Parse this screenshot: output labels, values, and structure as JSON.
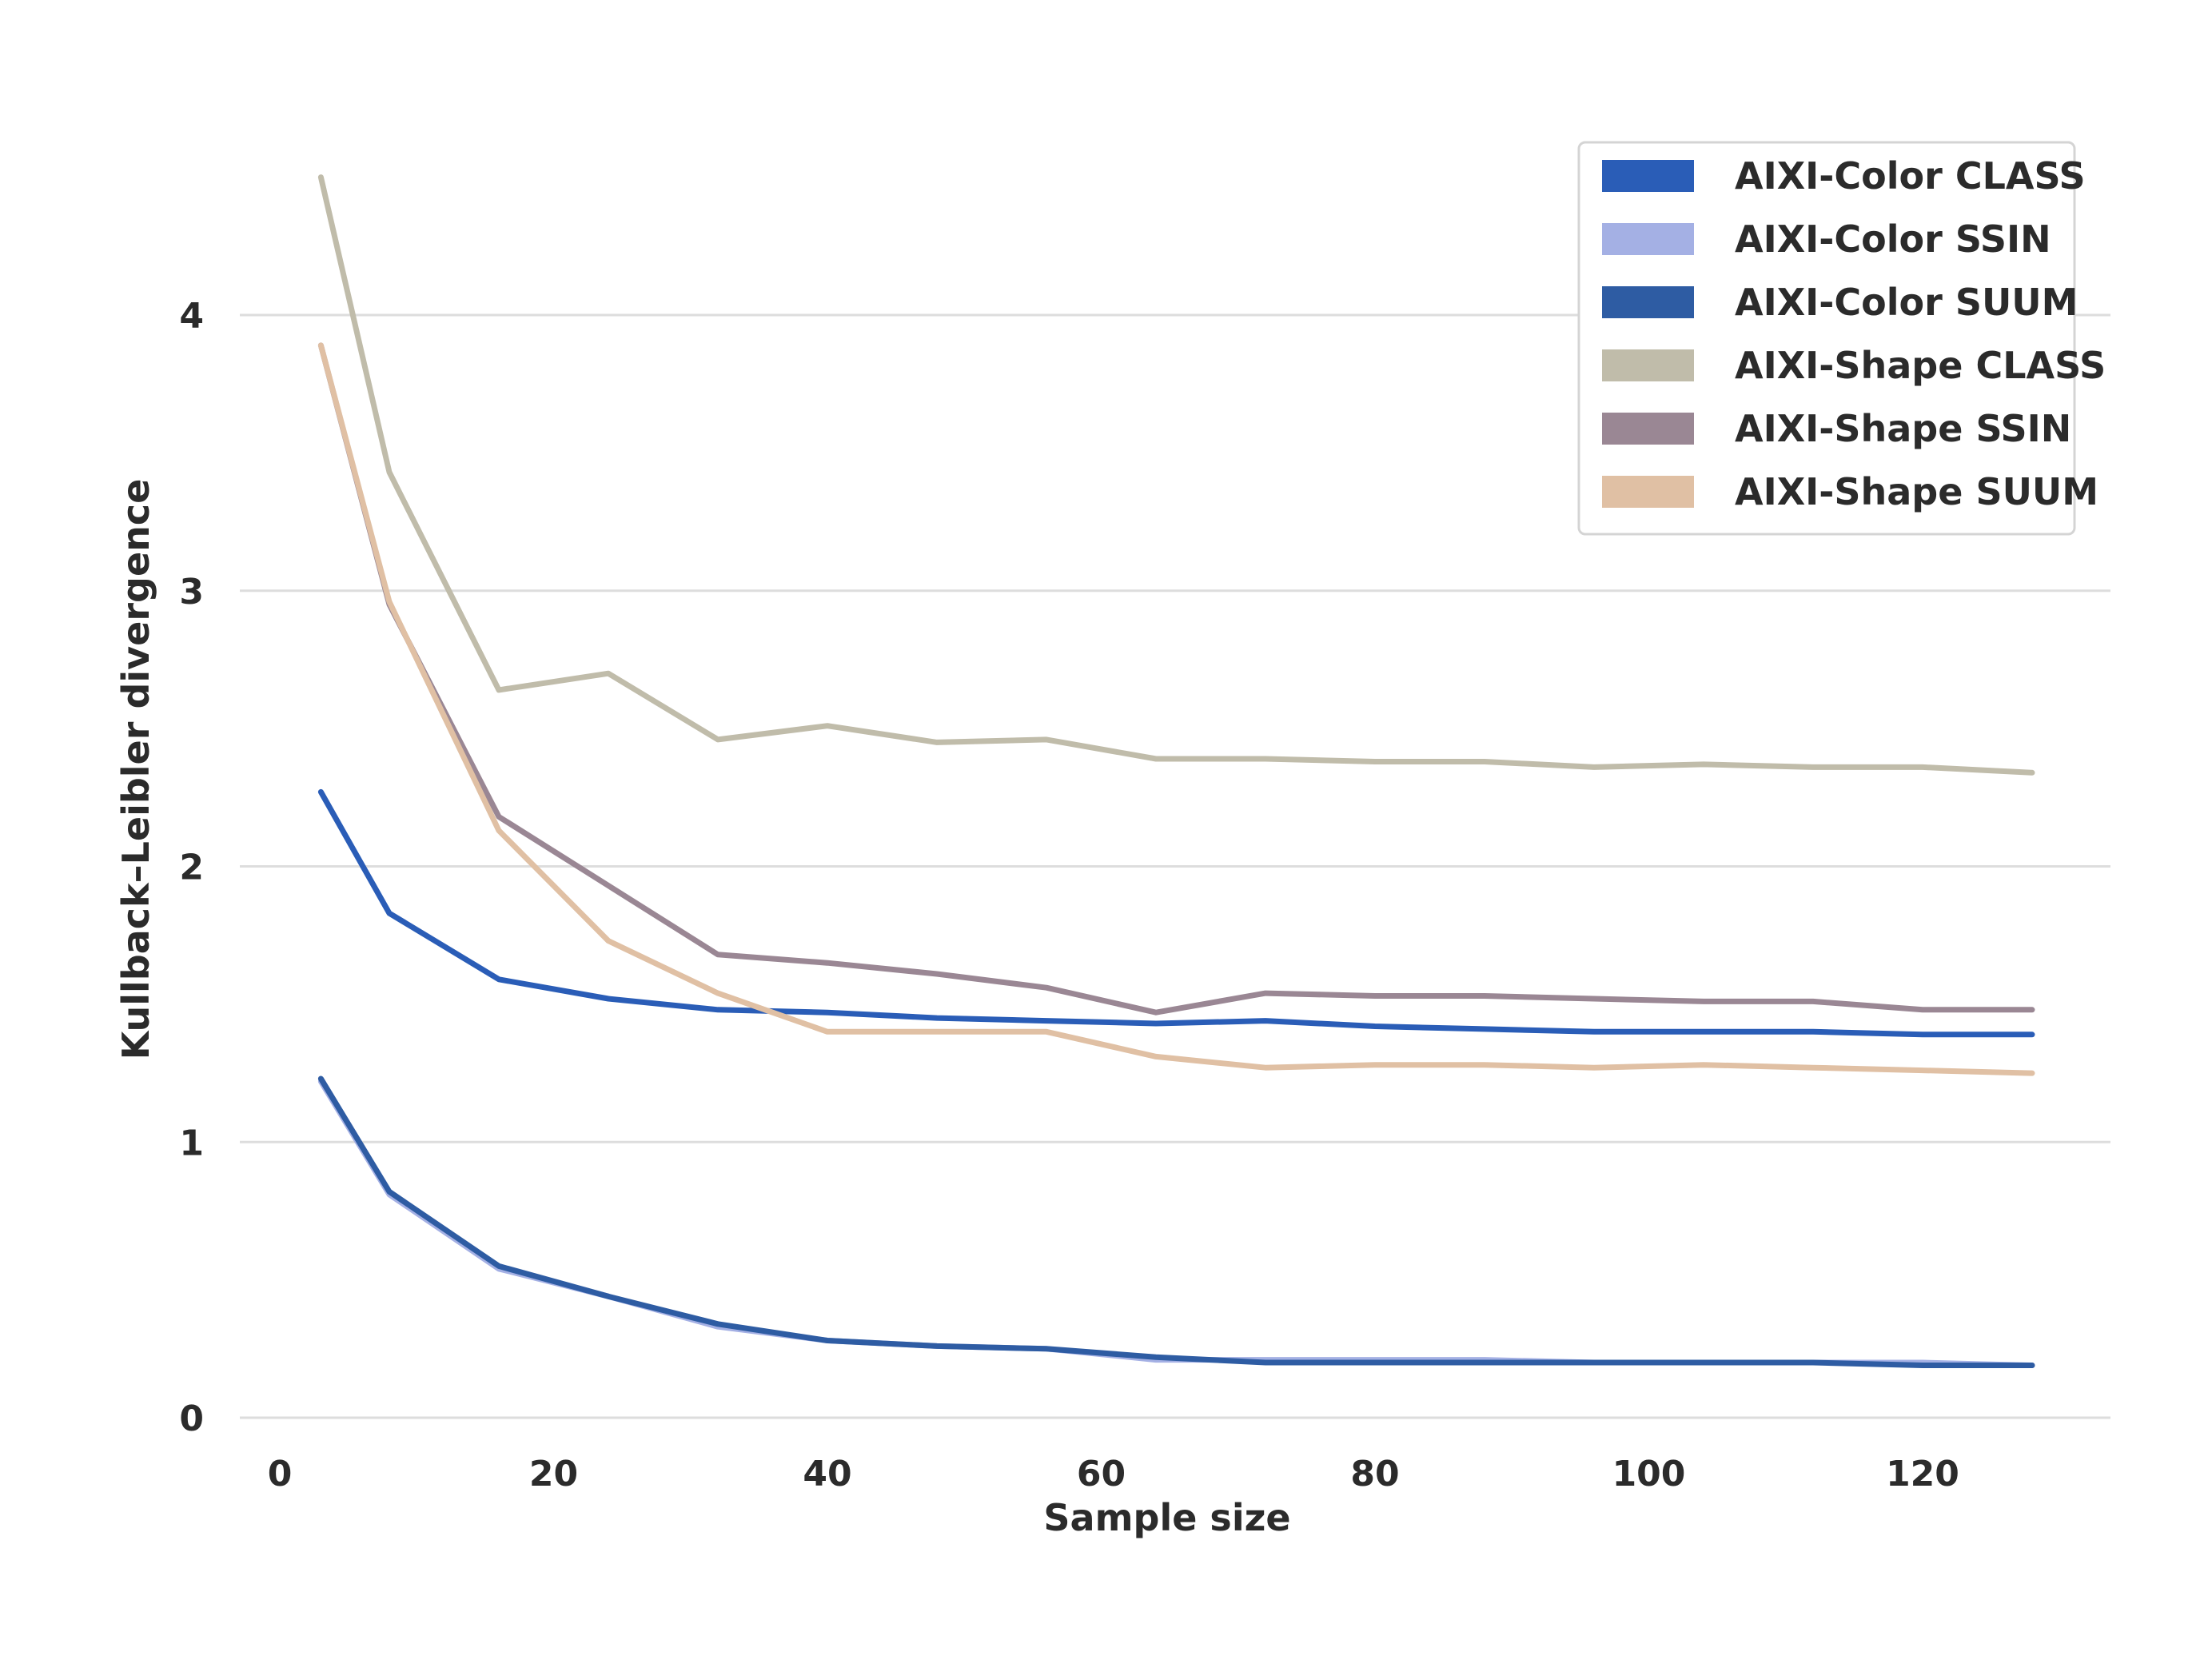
{
  "chart_data": {
    "type": "line",
    "title": "",
    "xlabel": "Sample size",
    "ylabel": "Kullback–Leibler divergence",
    "xlim": [
      -3,
      134
    ],
    "ylim": [
      0,
      4.5
    ],
    "xticks": [
      0,
      20,
      40,
      60,
      80,
      100,
      120
    ],
    "yticks": [
      0,
      1,
      2,
      3,
      4
    ],
    "grid": "horizontal",
    "legend_position": "top-right",
    "x": [
      3,
      8,
      16,
      24,
      32,
      40,
      48,
      56,
      64,
      72,
      80,
      88,
      96,
      104,
      112,
      120,
      128
    ],
    "series": [
      {
        "name": "AIXI-Color CLASS",
        "color": "#2a5db7",
        "values": [
          2.27,
          1.83,
          1.59,
          1.52,
          1.48,
          1.47,
          1.45,
          1.44,
          1.43,
          1.44,
          1.42,
          1.41,
          1.4,
          1.4,
          1.4,
          1.39,
          1.39
        ]
      },
      {
        "name": "AIXI-Color SSIN",
        "color": "#a4b0e4",
        "values": [
          1.22,
          0.81,
          0.54,
          0.44,
          0.33,
          0.28,
          0.26,
          0.25,
          0.21,
          0.21,
          0.21,
          0.21,
          0.2,
          0.2,
          0.2,
          0.2,
          0.19
        ]
      },
      {
        "name": "AIXI-Color SUUM",
        "color": "#2e5ca3",
        "values": [
          1.23,
          0.82,
          0.55,
          0.44,
          0.34,
          0.28,
          0.26,
          0.25,
          0.22,
          0.2,
          0.2,
          0.2,
          0.2,
          0.2,
          0.2,
          0.19,
          0.19
        ]
      },
      {
        "name": "AIXI-Shape CLASS",
        "color": "#c0bcaa",
        "values": [
          4.5,
          3.43,
          2.64,
          2.7,
          2.46,
          2.51,
          2.45,
          2.46,
          2.39,
          2.39,
          2.38,
          2.38,
          2.36,
          2.37,
          2.36,
          2.36,
          2.34
        ]
      },
      {
        "name": "AIXI-Shape SSIN",
        "color": "#9a8794",
        "values": [
          3.89,
          2.95,
          2.18,
          1.93,
          1.68,
          1.65,
          1.61,
          1.56,
          1.47,
          1.54,
          1.53,
          1.53,
          1.52,
          1.51,
          1.51,
          1.48,
          1.48
        ]
      },
      {
        "name": "AIXI-Shape SUUM",
        "color": "#e0c0a4",
        "values": [
          3.89,
          2.96,
          2.13,
          1.73,
          1.54,
          1.4,
          1.4,
          1.4,
          1.31,
          1.27,
          1.28,
          1.28,
          1.27,
          1.28,
          1.27,
          1.26,
          1.25
        ]
      }
    ]
  }
}
